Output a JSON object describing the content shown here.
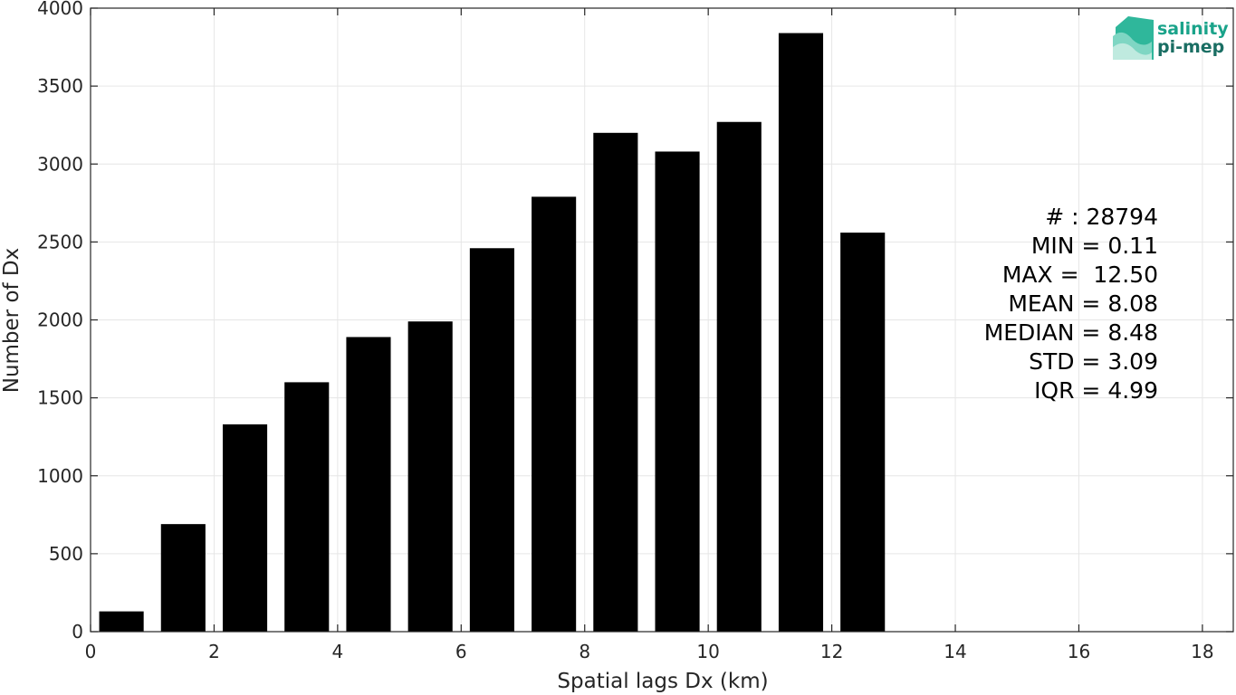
{
  "chart_data": {
    "type": "bar",
    "xlabel": "Spatial lags Dx (km)",
    "ylabel": "Number of Dx",
    "x": [
      0.5,
      1.5,
      2.5,
      3.5,
      4.5,
      5.5,
      6.5,
      7.5,
      8.5,
      9.5,
      10.5,
      11.5,
      12.5
    ],
    "values": [
      130,
      690,
      1330,
      1600,
      1890,
      1990,
      2460,
      2790,
      3200,
      3080,
      3270,
      3840,
      2560
    ],
    "bin_width": 1,
    "xlim": [
      0,
      18.5
    ],
    "ylim": [
      0,
      4000
    ],
    "xticks": [
      0,
      2,
      4,
      6,
      8,
      10,
      12,
      14,
      16,
      18
    ],
    "yticks": [
      0,
      500,
      1000,
      1500,
      2000,
      2500,
      3000,
      3500,
      4000
    ],
    "grid": true,
    "bar_color": "#000000",
    "grid_color": "#e6e6e6",
    "axis_color": "#262626"
  },
  "stats": [
    "# : 28794",
    "MIN = 0.11",
    "MAX =  12.50",
    "MEAN = 8.08",
    "MEDIAN = 8.48",
    "STD = 3.09",
    "IQR = 4.99"
  ],
  "logo": {
    "line1": "salinity",
    "line2": "pi-mep",
    "color": "#1aa38a"
  }
}
